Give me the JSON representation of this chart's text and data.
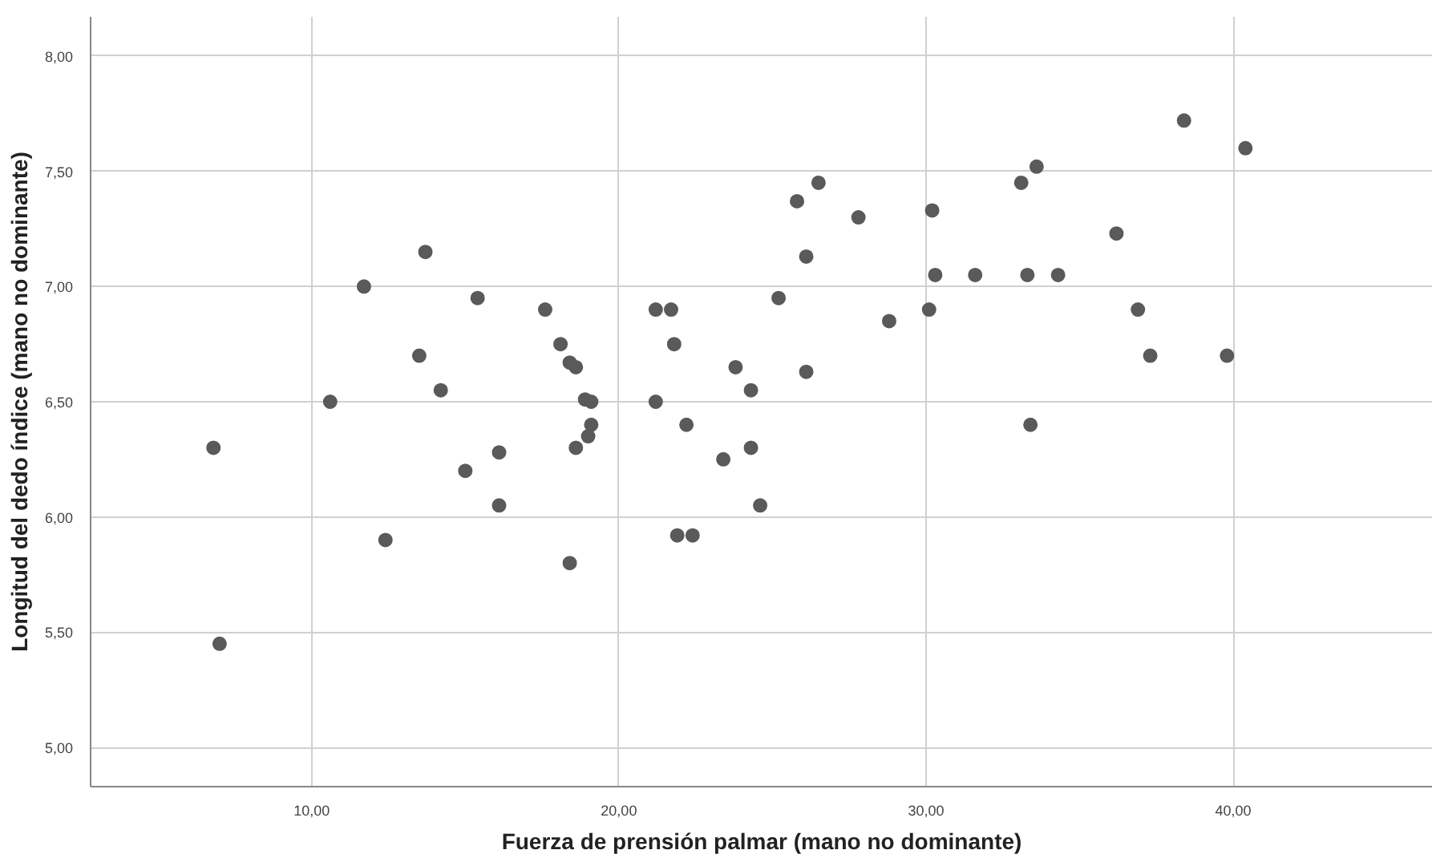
{
  "chart_data": {
    "type": "scatter",
    "xlabel": "Fuerza de prensión palmar (mano no dominante)",
    "ylabel": "Longitud del dedo índice (mano no dominante)",
    "xlim": [
      2.8,
      46.5
    ],
    "ylim": [
      4.83,
      8.17
    ],
    "xticks": [
      {
        "value": 10,
        "label": "10,00"
      },
      {
        "value": 20,
        "label": "20,00"
      },
      {
        "value": 30,
        "label": "30,00"
      },
      {
        "value": 40,
        "label": "40,00"
      }
    ],
    "yticks": [
      {
        "value": 5,
        "label": "5,00"
      },
      {
        "value": 5.5,
        "label": "5,50"
      },
      {
        "value": 6,
        "label": "6,00"
      },
      {
        "value": 6.5,
        "label": "6,50"
      },
      {
        "value": 7,
        "label": "7,00"
      },
      {
        "value": 7.5,
        "label": "7,50"
      },
      {
        "value": 8,
        "label": "8,00"
      }
    ],
    "grid": true,
    "marker": "circle",
    "series": [
      {
        "color": "#5a5a5a",
        "x": [
          6.8,
          7.0,
          10.6,
          11.7,
          12.4,
          13.5,
          13.7,
          14.2,
          15.0,
          15.4,
          16.1,
          16.1,
          17.6,
          18.1,
          18.4,
          18.6,
          18.9,
          19.1,
          19.1,
          19.0,
          18.6,
          18.4,
          21.2,
          21.7,
          21.8,
          21.2,
          22.2,
          21.9,
          22.4,
          23.8,
          24.3,
          23.4,
          24.3,
          24.6,
          25.2,
          25.8,
          26.1,
          26.5,
          26.1,
          27.8,
          28.8,
          30.1,
          30.2,
          30.3,
          31.6,
          33.1,
          33.6,
          33.3,
          34.3,
          33.4,
          36.2,
          36.9,
          37.3,
          38.4,
          39.8,
          40.4
        ],
        "values": [
          6.3,
          5.45,
          6.5,
          7.0,
          5.9,
          6.7,
          7.15,
          6.55,
          6.2,
          6.95,
          6.28,
          6.05,
          6.9,
          6.75,
          6.67,
          6.65,
          6.51,
          6.5,
          6.4,
          6.35,
          6.3,
          5.8,
          6.9,
          6.9,
          6.75,
          6.5,
          6.4,
          5.92,
          5.92,
          6.65,
          6.55,
          6.25,
          6.3,
          6.05,
          6.95,
          7.37,
          7.13,
          7.45,
          6.63,
          7.3,
          6.85,
          6.9,
          7.33,
          7.05,
          7.05,
          7.45,
          7.52,
          7.05,
          7.05,
          6.4,
          7.23,
          6.9,
          6.7,
          7.72,
          6.7,
          7.6
        ]
      }
    ]
  }
}
